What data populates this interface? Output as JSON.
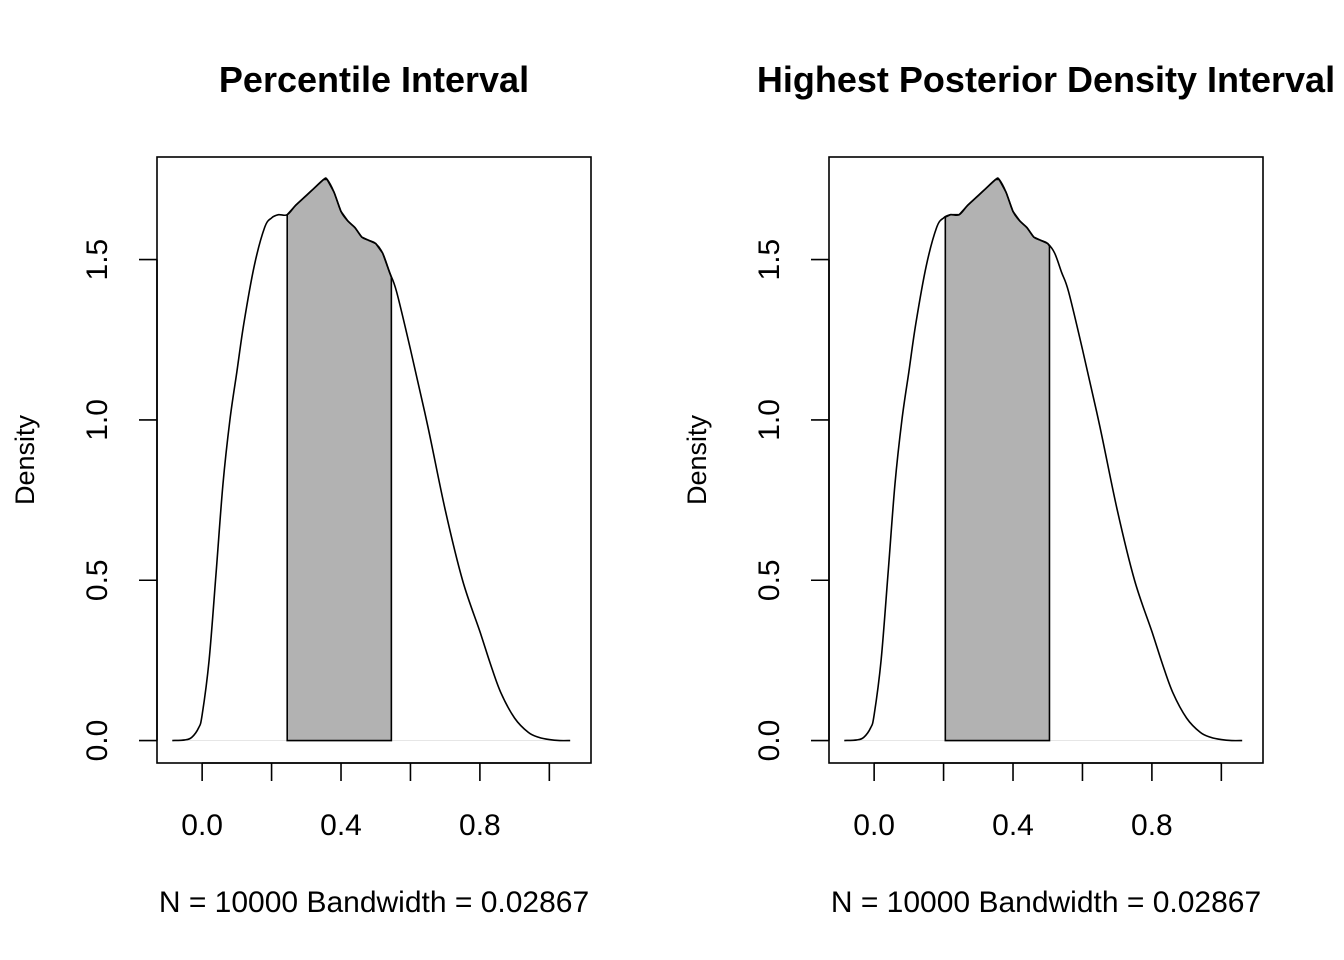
{
  "page": {
    "background": "#ffffff"
  },
  "chart_data": [
    {
      "type": "area",
      "title": "Percentile Interval",
      "xlabel": "N = 10000   Bandwidth = 0.02867",
      "ylabel": "Density",
      "xlim": [
        -0.13,
        1.12
      ],
      "ylim": [
        -0.07,
        1.82
      ],
      "xticks": [
        0.0,
        0.2,
        0.4,
        0.6,
        0.8,
        1.0
      ],
      "xtick_labels": [
        "0.0",
        "",
        "0.4",
        "",
        "0.8",
        ""
      ],
      "yticks": [
        0.0,
        0.5,
        1.0,
        1.5
      ],
      "ytick_labels": [
        "0.0",
        "0.5",
        "1.0",
        "1.5"
      ],
      "grid": false,
      "line_color": "#000000",
      "fill_color": "#b2b2b2",
      "shaded_interval": [
        0.245,
        0.545
      ],
      "series": [
        {
          "x": [
            -0.086,
            -0.05,
            -0.03,
            -0.01,
            0.0,
            0.02,
            0.04,
            0.06,
            0.08,
            0.1,
            0.12,
            0.15,
            0.18,
            0.2,
            0.22,
            0.245,
            0.27,
            0.3,
            0.32,
            0.35,
            0.36,
            0.38,
            0.4,
            0.42,
            0.44,
            0.46,
            0.48,
            0.5,
            0.52,
            0.54,
            0.56,
            0.6,
            0.65,
            0.7,
            0.75,
            0.8,
            0.83,
            0.86,
            0.9,
            0.94,
            0.97,
            1.0,
            1.03,
            1.06
          ],
          "y": [
            0.0,
            0.002,
            0.01,
            0.04,
            0.08,
            0.25,
            0.52,
            0.8,
            1.0,
            1.15,
            1.3,
            1.48,
            1.6,
            1.63,
            1.64,
            1.64,
            1.67,
            1.7,
            1.72,
            1.75,
            1.75,
            1.71,
            1.65,
            1.62,
            1.6,
            1.57,
            1.56,
            1.55,
            1.52,
            1.46,
            1.4,
            1.22,
            0.98,
            0.72,
            0.5,
            0.34,
            0.24,
            0.15,
            0.07,
            0.025,
            0.01,
            0.003,
            0.0,
            0.0
          ]
        }
      ]
    },
    {
      "type": "area",
      "title": "Highest Posterior Density Interval",
      "xlabel": "N = 10000   Bandwidth = 0.02867",
      "ylabel": "Density",
      "xlim": [
        -0.13,
        1.12
      ],
      "ylim": [
        -0.07,
        1.82
      ],
      "xticks": [
        0.0,
        0.2,
        0.4,
        0.6,
        0.8,
        1.0
      ],
      "xtick_labels": [
        "0.0",
        "",
        "0.4",
        "",
        "0.8",
        ""
      ],
      "yticks": [
        0.0,
        0.5,
        1.0,
        1.5
      ],
      "ytick_labels": [
        "0.0",
        "0.5",
        "1.0",
        "1.5"
      ],
      "grid": false,
      "line_color": "#000000",
      "fill_color": "#b2b2b2",
      "shaded_interval": [
        0.205,
        0.505
      ],
      "series": [
        {
          "x": [
            -0.086,
            -0.05,
            -0.03,
            -0.01,
            0.0,
            0.02,
            0.04,
            0.06,
            0.08,
            0.1,
            0.12,
            0.15,
            0.18,
            0.2,
            0.22,
            0.245,
            0.27,
            0.3,
            0.32,
            0.35,
            0.36,
            0.38,
            0.4,
            0.42,
            0.44,
            0.46,
            0.48,
            0.5,
            0.52,
            0.54,
            0.56,
            0.6,
            0.65,
            0.7,
            0.75,
            0.8,
            0.83,
            0.86,
            0.9,
            0.94,
            0.97,
            1.0,
            1.03,
            1.06
          ],
          "y": [
            0.0,
            0.002,
            0.01,
            0.04,
            0.08,
            0.25,
            0.52,
            0.8,
            1.0,
            1.15,
            1.3,
            1.48,
            1.6,
            1.63,
            1.64,
            1.64,
            1.67,
            1.7,
            1.72,
            1.75,
            1.75,
            1.71,
            1.65,
            1.62,
            1.6,
            1.57,
            1.56,
            1.55,
            1.52,
            1.46,
            1.4,
            1.22,
            0.98,
            0.72,
            0.5,
            0.34,
            0.24,
            0.15,
            0.07,
            0.025,
            0.01,
            0.003,
            0.0,
            0.0
          ]
        }
      ]
    }
  ]
}
